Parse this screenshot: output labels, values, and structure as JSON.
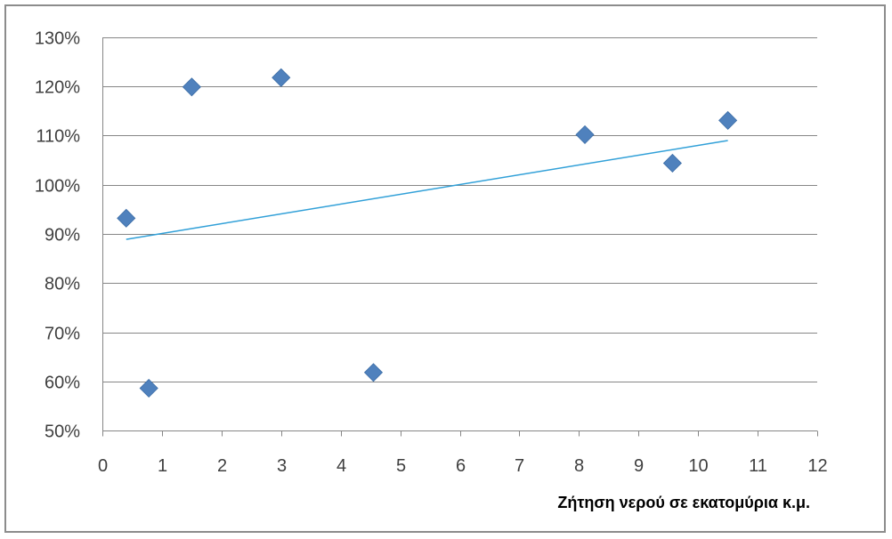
{
  "chart_data": {
    "type": "scatter",
    "title": "",
    "xlabel": "Ζήτηση νερού σε εκατομύρια κ.μ.",
    "ylabel": "",
    "xlim": [
      0,
      12
    ],
    "ylim": [
      0.5,
      1.3
    ],
    "x_ticks": [
      0,
      1,
      2,
      3,
      4,
      5,
      6,
      7,
      8,
      9,
      10,
      11,
      12
    ],
    "y_ticks": [
      0.5,
      0.6,
      0.7,
      0.8,
      0.9,
      1.0,
      1.1,
      1.2,
      1.3
    ],
    "x_tick_labels": [
      "0",
      "1",
      "2",
      "3",
      "4",
      "5",
      "6",
      "7",
      "8",
      "9",
      "10",
      "11",
      "12"
    ],
    "y_tick_labels": [
      "50%",
      "60%",
      "70%",
      "80%",
      "90%",
      "100%",
      "110%",
      "120%",
      "130%"
    ],
    "grid": "horizontal",
    "legend": "none",
    "series": [
      {
        "marker": "diamond",
        "color": "#4f81bd",
        "points": [
          {
            "x": 0.4,
            "y": 0.932
          },
          {
            "x": 0.78,
            "y": 0.586
          },
          {
            "x": 1.5,
            "y": 1.199
          },
          {
            "x": 3.0,
            "y": 1.218
          },
          {
            "x": 4.55,
            "y": 0.618
          },
          {
            "x": 8.1,
            "y": 1.102
          },
          {
            "x": 9.57,
            "y": 1.044
          },
          {
            "x": 10.5,
            "y": 1.131
          }
        ]
      }
    ],
    "trendline": {
      "type": "linear",
      "color": "#31a0d8",
      "x_start": 0.4,
      "y_start": 0.889,
      "x_end": 10.5,
      "y_end": 1.09
    }
  }
}
